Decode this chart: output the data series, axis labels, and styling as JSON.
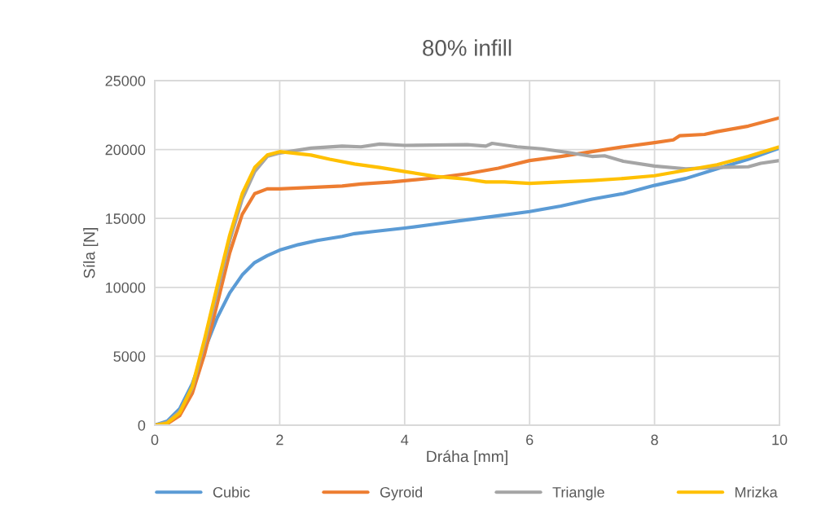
{
  "chart_data": {
    "type": "line",
    "title": "80% infill",
    "xlabel": "Dráha [mm]",
    "ylabel": "Síla [N]",
    "xlim": [
      0,
      10
    ],
    "xticks": [
      0,
      2,
      4,
      6,
      8,
      10
    ],
    "ylim": [
      0,
      25000
    ],
    "yticks": [
      0,
      5000,
      10000,
      15000,
      20000,
      25000
    ],
    "grid": true,
    "legend": "bottom",
    "marker": "none",
    "line_style": "solid",
    "series": [
      {
        "name": "Cubic",
        "color": "#5b9bd5",
        "x": [
          0,
          0.2,
          0.4,
          0.6,
          0.8,
          1.0,
          1.2,
          1.4,
          1.6,
          1.8,
          2.0,
          2.3,
          2.6,
          3.0,
          3.2,
          3.5,
          4.0,
          4.5,
          5.0,
          5.5,
          6.0,
          6.5,
          7.0,
          7.5,
          8.0,
          8.5,
          9.0,
          9.5,
          10
        ],
        "values": [
          0,
          300,
          1200,
          3000,
          5500,
          7800,
          9600,
          10900,
          11800,
          12300,
          12700,
          13100,
          13400,
          13700,
          13900,
          14050,
          14300,
          14600,
          14900,
          15200,
          15500,
          15900,
          16400,
          16800,
          17400,
          17900,
          18600,
          19300,
          20100
        ]
      },
      {
        "name": "Gyroid",
        "color": "#ed7d31",
        "x": [
          0,
          0.2,
          0.4,
          0.6,
          0.8,
          1.0,
          1.2,
          1.4,
          1.6,
          1.8,
          2.0,
          2.5,
          3.0,
          3.3,
          3.8,
          4.5,
          5.0,
          5.5,
          6.0,
          6.5,
          7.0,
          7.5,
          8.0,
          8.3,
          8.4,
          8.8,
          9.0,
          9.5,
          10
        ],
        "values": [
          0,
          100,
          700,
          2300,
          5200,
          8800,
          12500,
          15300,
          16800,
          17150,
          17150,
          17250,
          17350,
          17500,
          17650,
          17950,
          18250,
          18650,
          19200,
          19500,
          19850,
          20200,
          20500,
          20700,
          21000,
          21100,
          21300,
          21700,
          22300
        ]
      },
      {
        "name": "Triangle",
        "color": "#a5a5a5",
        "x": [
          0,
          0.2,
          0.4,
          0.6,
          0.8,
          1.0,
          1.2,
          1.4,
          1.6,
          1.8,
          2.0,
          2.5,
          3.0,
          3.3,
          3.6,
          4.0,
          5.0,
          5.3,
          5.4,
          5.8,
          6.2,
          6.6,
          7.0,
          7.2,
          7.5,
          8.0,
          8.5,
          9.0,
          9.5,
          9.7,
          10
        ],
        "values": [
          0,
          200,
          1000,
          2700,
          6000,
          9700,
          13400,
          16400,
          18400,
          19500,
          19750,
          20100,
          20250,
          20200,
          20400,
          20300,
          20350,
          20250,
          20450,
          20200,
          20050,
          19800,
          19500,
          19550,
          19150,
          18800,
          18600,
          18700,
          18750,
          19000,
          19200
        ]
      },
      {
        "name": "Mrizka",
        "color": "#ffc000",
        "x": [
          0,
          0.2,
          0.4,
          0.6,
          0.8,
          1.0,
          1.2,
          1.4,
          1.6,
          1.8,
          2.0,
          2.5,
          2.8,
          3.2,
          3.6,
          4.0,
          4.5,
          5.0,
          5.3,
          5.6,
          6.0,
          6.5,
          7.0,
          7.5,
          8.0,
          8.5,
          9.0,
          9.5,
          10
        ],
        "values": [
          0,
          150,
          900,
          2800,
          6300,
          10100,
          13800,
          16800,
          18700,
          19600,
          19850,
          19600,
          19300,
          18950,
          18700,
          18400,
          18050,
          17850,
          17650,
          17650,
          17550,
          17650,
          17750,
          17900,
          18100,
          18500,
          18900,
          19500,
          20200
        ]
      }
    ]
  }
}
